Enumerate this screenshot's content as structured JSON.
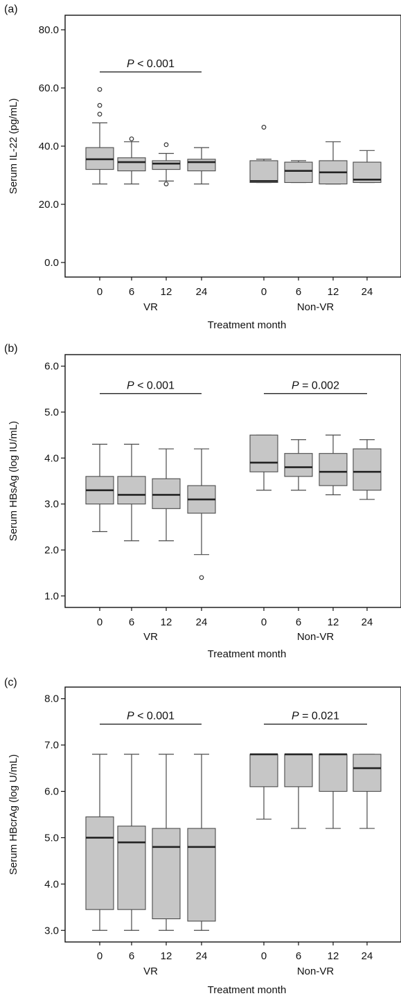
{
  "chart_data": [
    {
      "type": "box",
      "panel_label": "(a)",
      "ylabel": "Serum IL-22 (pg/mL)",
      "xlabel": "Treatment month",
      "ylim": [
        -5,
        85
      ],
      "yticks": [
        0,
        20,
        40,
        60,
        80
      ],
      "yticklabels": [
        "0.0",
        "20.0",
        "40.0",
        "60.0",
        "80.0"
      ],
      "groups": [
        "VR",
        "Non-VR"
      ],
      "categories": [
        "0",
        "6",
        "12",
        "24"
      ],
      "significance": [
        {
          "group": "VR",
          "label": "P < 0.001",
          "y": 65.5
        }
      ],
      "boxes": [
        {
          "group": "VR",
          "month": "0",
          "whislo": 27,
          "q1": 32,
          "med": 35.5,
          "q3": 39.5,
          "whishi": 48,
          "fliers": [
            51,
            54,
            59.5
          ]
        },
        {
          "group": "VR",
          "month": "6",
          "whislo": 27,
          "q1": 31.5,
          "med": 34.5,
          "q3": 36,
          "whishi": 41.5,
          "fliers": [
            42.5
          ]
        },
        {
          "group": "VR",
          "month": "12",
          "whislo": 28,
          "q1": 32,
          "med": 34,
          "q3": 35,
          "whishi": 37.5,
          "fliers": [
            40.5,
            27
          ]
        },
        {
          "group": "VR",
          "month": "24",
          "whislo": 27,
          "q1": 31.5,
          "med": 34.5,
          "q3": 35.5,
          "whishi": 39.5,
          "fliers": []
        },
        {
          "group": "Non-VR",
          "month": "0",
          "whislo": 27.5,
          "q1": 27.5,
          "med": 28,
          "q3": 35,
          "whishi": 35.5,
          "fliers": [
            46.5
          ]
        },
        {
          "group": "Non-VR",
          "month": "6",
          "whislo": 27.5,
          "q1": 27.5,
          "med": 31.5,
          "q3": 34.5,
          "whishi": 35,
          "fliers": []
        },
        {
          "group": "Non-VR",
          "month": "12",
          "whislo": 27,
          "q1": 27,
          "med": 31,
          "q3": 35,
          "whishi": 41.5,
          "fliers": []
        },
        {
          "group": "Non-VR",
          "month": "24",
          "whislo": 27.5,
          "q1": 27.5,
          "med": 28.5,
          "q3": 34.5,
          "whishi": 38.5,
          "fliers": []
        }
      ]
    },
    {
      "type": "box",
      "panel_label": "(b)",
      "ylabel": "Serum HBsAg (log IU/mL)",
      "xlabel": "Treatment month",
      "ylim": [
        0.75,
        6.25
      ],
      "yticks": [
        1,
        2,
        3,
        4,
        5,
        6
      ],
      "yticklabels": [
        "1.0",
        "2.0",
        "3.0",
        "4.0",
        "5.0",
        "6.0"
      ],
      "groups": [
        "VR",
        "Non-VR"
      ],
      "categories": [
        "0",
        "6",
        "12",
        "24"
      ],
      "significance": [
        {
          "group": "VR",
          "label": "P < 0.001",
          "y": 5.4
        },
        {
          "group": "Non-VR",
          "label": "P = 0.002",
          "y": 5.4
        }
      ],
      "boxes": [
        {
          "group": "VR",
          "month": "0",
          "whislo": 2.4,
          "q1": 3.0,
          "med": 3.3,
          "q3": 3.6,
          "whishi": 4.3,
          "fliers": []
        },
        {
          "group": "VR",
          "month": "6",
          "whislo": 2.2,
          "q1": 3.0,
          "med": 3.2,
          "q3": 3.6,
          "whishi": 4.3,
          "fliers": []
        },
        {
          "group": "VR",
          "month": "12",
          "whislo": 2.2,
          "q1": 2.9,
          "med": 3.2,
          "q3": 3.55,
          "whishi": 4.2,
          "fliers": []
        },
        {
          "group": "VR",
          "month": "24",
          "whislo": 1.9,
          "q1": 2.8,
          "med": 3.1,
          "q3": 3.4,
          "whishi": 4.2,
          "fliers": [
            1.4
          ]
        },
        {
          "group": "Non-VR",
          "month": "0",
          "whislo": 3.3,
          "q1": 3.7,
          "med": 3.9,
          "q3": 4.5,
          "whishi": 4.5,
          "fliers": []
        },
        {
          "group": "Non-VR",
          "month": "6",
          "whislo": 3.3,
          "q1": 3.6,
          "med": 3.8,
          "q3": 4.1,
          "whishi": 4.4,
          "fliers": []
        },
        {
          "group": "Non-VR",
          "month": "12",
          "whislo": 3.2,
          "q1": 3.4,
          "med": 3.7,
          "q3": 4.1,
          "whishi": 4.5,
          "fliers": []
        },
        {
          "group": "Non-VR",
          "month": "24",
          "whislo": 3.1,
          "q1": 3.3,
          "med": 3.7,
          "q3": 4.2,
          "whishi": 4.4,
          "fliers": []
        }
      ]
    },
    {
      "type": "box",
      "panel_label": "(c)",
      "ylabel": "Serum HBcrAg (log U/mL)",
      "xlabel": "Treatment month",
      "ylim": [
        2.75,
        8.25
      ],
      "yticks": [
        3,
        4,
        5,
        6,
        7,
        8
      ],
      "yticklabels": [
        "3.0",
        "4.0",
        "5.0",
        "6.0",
        "7.0",
        "8.0"
      ],
      "groups": [
        "VR",
        "Non-VR"
      ],
      "categories": [
        "0",
        "6",
        "12",
        "24"
      ],
      "significance": [
        {
          "group": "VR",
          "label": "P < 0.001",
          "y": 7.45
        },
        {
          "group": "Non-VR",
          "label": "P = 0.021",
          "y": 7.45
        }
      ],
      "boxes": [
        {
          "group": "VR",
          "month": "0",
          "whislo": 3.0,
          "q1": 3.45,
          "med": 5.0,
          "q3": 5.45,
          "whishi": 6.8,
          "fliers": []
        },
        {
          "group": "VR",
          "month": "6",
          "whislo": 3.0,
          "q1": 3.45,
          "med": 4.9,
          "q3": 5.25,
          "whishi": 6.8,
          "fliers": []
        },
        {
          "group": "VR",
          "month": "12",
          "whislo": 3.0,
          "q1": 3.25,
          "med": 4.8,
          "q3": 5.2,
          "whishi": 6.8,
          "fliers": []
        },
        {
          "group": "VR",
          "month": "24",
          "whislo": 3.0,
          "q1": 3.2,
          "med": 4.8,
          "q3": 5.2,
          "whishi": 6.8,
          "fliers": []
        },
        {
          "group": "Non-VR",
          "month": "0",
          "whislo": 5.4,
          "q1": 6.1,
          "med": 6.8,
          "q3": 6.8,
          "whishi": 6.8,
          "fliers": []
        },
        {
          "group": "Non-VR",
          "month": "6",
          "whislo": 5.2,
          "q1": 6.1,
          "med": 6.8,
          "q3": 6.8,
          "whishi": 6.8,
          "fliers": []
        },
        {
          "group": "Non-VR",
          "month": "12",
          "whislo": 5.2,
          "q1": 6.0,
          "med": 6.8,
          "q3": 6.8,
          "whishi": 6.8,
          "fliers": []
        },
        {
          "group": "Non-VR",
          "month": "24",
          "whislo": 5.2,
          "q1": 6.0,
          "med": 6.5,
          "q3": 6.8,
          "whishi": 6.8,
          "fliers": []
        }
      ]
    }
  ],
  "colors": {
    "box_fill": "#c6c6c6",
    "box_stroke": "#4a4a4a",
    "axis": "#111111"
  }
}
